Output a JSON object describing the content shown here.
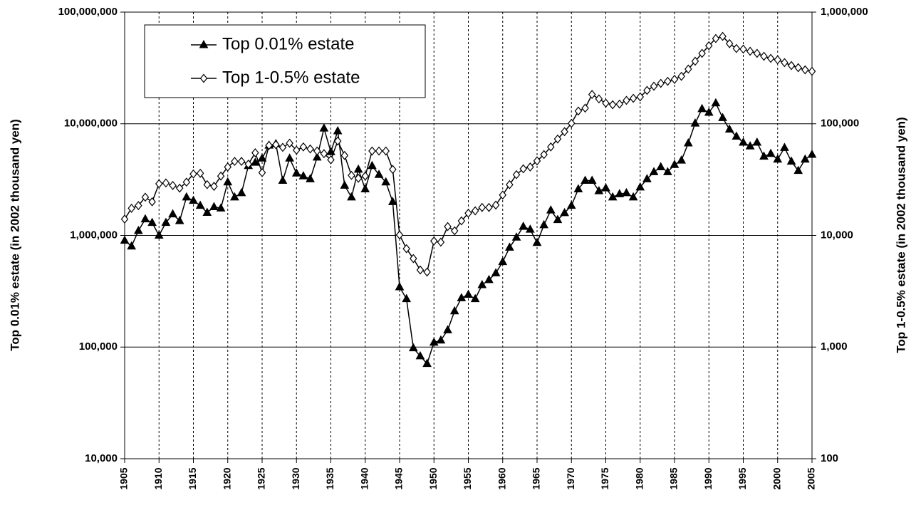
{
  "chart_data": {
    "type": "line",
    "y_label": "Top 0.01% estate (in 2002 thousand yen)",
    "y2_label": "Top 1-0.5% estate (in 2002 thousand yen)",
    "log_scale": true,
    "grid": true,
    "legend": "upper left",
    "x": [
      1905,
      1906,
      1907,
      1908,
      1909,
      1910,
      1911,
      1912,
      1913,
      1914,
      1915,
      1916,
      1917,
      1918,
      1919,
      1920,
      1921,
      1922,
      1923,
      1924,
      1925,
      1926,
      1927,
      1928,
      1929,
      1930,
      1931,
      1932,
      1933,
      1934,
      1935,
      1936,
      1937,
      1938,
      1939,
      1940,
      1941,
      1942,
      1943,
      1944,
      1945,
      1946,
      1947,
      1948,
      1949,
      1950,
      1951,
      1952,
      1953,
      1954,
      1955,
      1956,
      1957,
      1958,
      1959,
      1960,
      1961,
      1962,
      1963,
      1964,
      1965,
      1966,
      1967,
      1968,
      1969,
      1970,
      1971,
      1972,
      1973,
      1974,
      1975,
      1976,
      1977,
      1978,
      1979,
      1980,
      1981,
      1982,
      1983,
      1984,
      1985,
      1986,
      1987,
      1988,
      1989,
      1990,
      1991,
      1992,
      1993,
      1994,
      1995,
      1996,
      1997,
      1998,
      1999,
      2000,
      2001,
      2002,
      2003,
      2004,
      2005
    ],
    "xlim": [
      1905,
      2005
    ],
    "xticks": [
      1905,
      1910,
      1915,
      1920,
      1925,
      1930,
      1935,
      1940,
      1945,
      1950,
      1955,
      1960,
      1965,
      1970,
      1975,
      1980,
      1985,
      1990,
      1995,
      2000,
      2005
    ],
    "ylim": [
      10000,
      100000000
    ],
    "yticks": [
      {
        "value": 10000,
        "label": "10,000"
      },
      {
        "value": 100000,
        "label": "100,000"
      },
      {
        "value": 1000000,
        "label": "1,000,000"
      },
      {
        "value": 10000000,
        "label": "10,000,000"
      },
      {
        "value": 100000000,
        "label": "100,000,000"
      }
    ],
    "y2lim": [
      100,
      1000000
    ],
    "y2ticks": [
      100,
      {
        "value": 1000,
        "label": "1,000"
      },
      {
        "value": 10000,
        "label": "10,000"
      },
      {
        "value": 100000,
        "label": "100,000"
      },
      {
        "value": 1000000,
        "label": "1,000,000"
      }
    ],
    "series": [
      {
        "name": "Top 0.01% estate",
        "color": "#000000",
        "marker": "triangle",
        "values": [
          900000,
          800000,
          1100000,
          1400000,
          1300000,
          1000000,
          1300000,
          1550000,
          1350000,
          2200000,
          2050000,
          1850000,
          1600000,
          1800000,
          1750000,
          3000000,
          2200000,
          2400000,
          4200000,
          4500000,
          4900000,
          6400000,
          6600000,
          3100000,
          4900000,
          3600000,
          3400000,
          3200000,
          5000000,
          9100000,
          5600000,
          8600000,
          2800000,
          2200000,
          3900000,
          2600000,
          4200000,
          3500000,
          3000000,
          2000000,
          345000,
          270000,
          98000,
          83000,
          71000,
          110000,
          115000,
          142000,
          210000,
          275000,
          295000,
          270000,
          360000,
          400000,
          460000,
          580000,
          780000,
          960000,
          1200000,
          1130000,
          860000,
          1240000,
          1680000,
          1380000,
          1590000,
          1850000,
          2600000,
          3100000,
          3100000,
          2500000,
          2650000,
          2200000,
          2350000,
          2400000,
          2200000,
          2700000,
          3200000,
          3700000,
          4100000,
          3700000,
          4300000,
          4700000,
          6700000,
          10100000,
          13600000,
          12600000,
          15300000,
          11300000,
          8900000,
          7700000,
          6800000,
          6300000,
          6800000,
          5100000,
          5400000,
          4800000,
          6100000,
          4600000,
          3800000,
          4800000,
          5300000
        ]
      },
      {
        "name": "Top 1-0.5% estate",
        "color": "#000000",
        "marker": "diamond",
        "axis": "y2",
        "values": [
          14000,
          17500,
          18500,
          22000,
          20000,
          29000,
          29500,
          28000,
          26500,
          30000,
          35500,
          36000,
          28500,
          27500,
          34000,
          41000,
          46000,
          46000,
          43500,
          55000,
          36500,
          64000,
          65000,
          61500,
          67000,
          58000,
          62000,
          59500,
          57000,
          54000,
          47500,
          70000,
          52000,
          34500,
          32500,
          34000,
          57000,
          57000,
          57000,
          39000,
          10100,
          7600,
          6200,
          4900,
          4700,
          8900,
          8700,
          12000,
          11000,
          13500,
          15800,
          16600,
          17800,
          17800,
          18700,
          23000,
          28500,
          35000,
          39500,
          41000,
          46500,
          53000,
          62000,
          73000,
          85000,
          101000,
          130000,
          138000,
          183000,
          167000,
          153000,
          148000,
          150000,
          162000,
          169000,
          174000,
          199000,
          217000,
          230000,
          240000,
          250000,
          266000,
          309000,
          363000,
          427000,
          500000,
          580000,
          606000,
          522000,
          472000,
          466000,
          446000,
          427000,
          402000,
          385000,
          374000,
          353000,
          332000,
          318000,
          304000,
          295000
        ]
      }
    ]
  }
}
